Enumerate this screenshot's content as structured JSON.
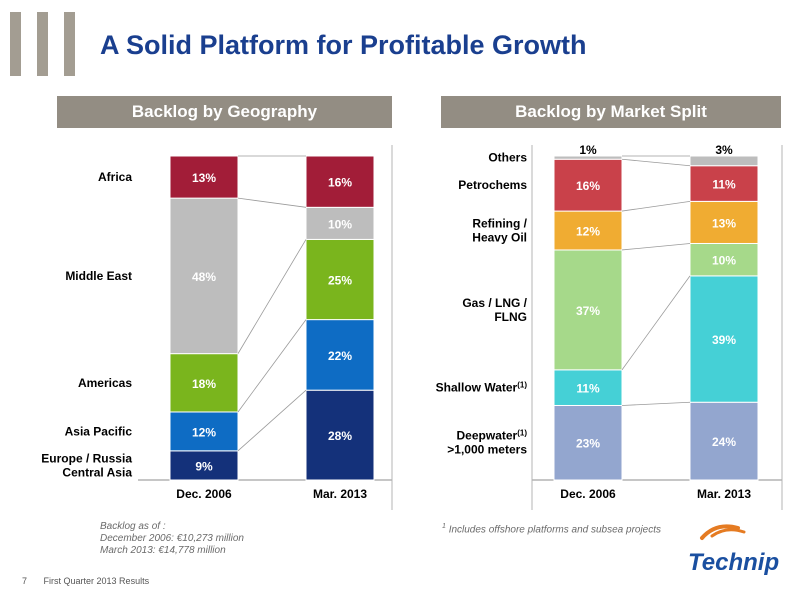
{
  "title": "A Solid Platform for Profitable Growth",
  "colors": {
    "accent_blue": "#1a3f8f",
    "header_bg": "#938d83",
    "africa": "#a21d38",
    "middle_east": "#bdbdbd",
    "americas": "#7ab51d",
    "asia_pacific": "#0e6cc4",
    "europe_russia": "#14317a",
    "others": "#bdbdbd",
    "petrochems": "#c9414a",
    "refining": "#f0ac32",
    "gas_lng": "#a6d98a",
    "shallow_water": "#45d0d6",
    "deepwater": "#93a6cf"
  },
  "chart_data": [
    {
      "type": "bar",
      "stacked": true,
      "title": "Backlog by Geography",
      "categories": [
        "Dec. 2006",
        "Mar. 2013"
      ],
      "series": [
        {
          "name": "Europe / Russia Central Asia",
          "values": [
            9,
            28
          ],
          "labels": [
            "9%",
            "28%"
          ],
          "color": "#14317a"
        },
        {
          "name": "Asia Pacific",
          "values": [
            12,
            22
          ],
          "labels": [
            "12%",
            "22%"
          ],
          "color": "#0e6cc4"
        },
        {
          "name": "Americas",
          "values": [
            18,
            25
          ],
          "labels": [
            "18%",
            "25%"
          ],
          "color": "#7ab51d"
        },
        {
          "name": "Middle East",
          "values": [
            48,
            10
          ],
          "labels": [
            "48%",
            "10%"
          ],
          "color": "#bdbdbd"
        },
        {
          "name": "Africa",
          "values": [
            13,
            16
          ],
          "labels": [
            "13%",
            "16%"
          ],
          "color": "#a21d38"
        }
      ]
    },
    {
      "type": "bar",
      "stacked": true,
      "title": "Backlog by Market Split",
      "categories": [
        "Dec. 2006",
        "Mar. 2013"
      ],
      "series": [
        {
          "name": "Deepwater(1) >1,000 meters",
          "values": [
            23,
            24
          ],
          "labels": [
            "23%",
            "24%"
          ],
          "color": "#93a6cf"
        },
        {
          "name": "Shallow Water(1)",
          "values": [
            11,
            39
          ],
          "labels": [
            "11%",
            "39%"
          ],
          "color": "#45d0d6"
        },
        {
          "name": "Gas / LNG / FLNG",
          "values": [
            37,
            10
          ],
          "labels": [
            "37%",
            "10%"
          ],
          "color": "#a6d98a"
        },
        {
          "name": "Refining / Heavy Oil",
          "values": [
            12,
            13
          ],
          "labels": [
            "12%",
            "13%"
          ],
          "color": "#f0ac32"
        },
        {
          "name": "Petrochems",
          "values": [
            16,
            11
          ],
          "labels": [
            "16%",
            "11%"
          ],
          "color": "#c9414a"
        },
        {
          "name": "Others",
          "values": [
            1,
            3
          ],
          "labels": [
            "1%",
            "3%"
          ],
          "color": "#bdbdbd"
        }
      ]
    }
  ],
  "left_note": {
    "line1": "Backlog as of :",
    "line2": "December 2006: €10,273 million",
    "line3": "March 2013: €14,778 million"
  },
  "right_note": {
    "sup": "1",
    "text": "Includes offshore platforms and subsea projects"
  },
  "footer": {
    "page": "7",
    "text": "First Quarter 2013 Results"
  },
  "logo": {
    "text": "Technip",
    "icon": "technip-logo"
  }
}
